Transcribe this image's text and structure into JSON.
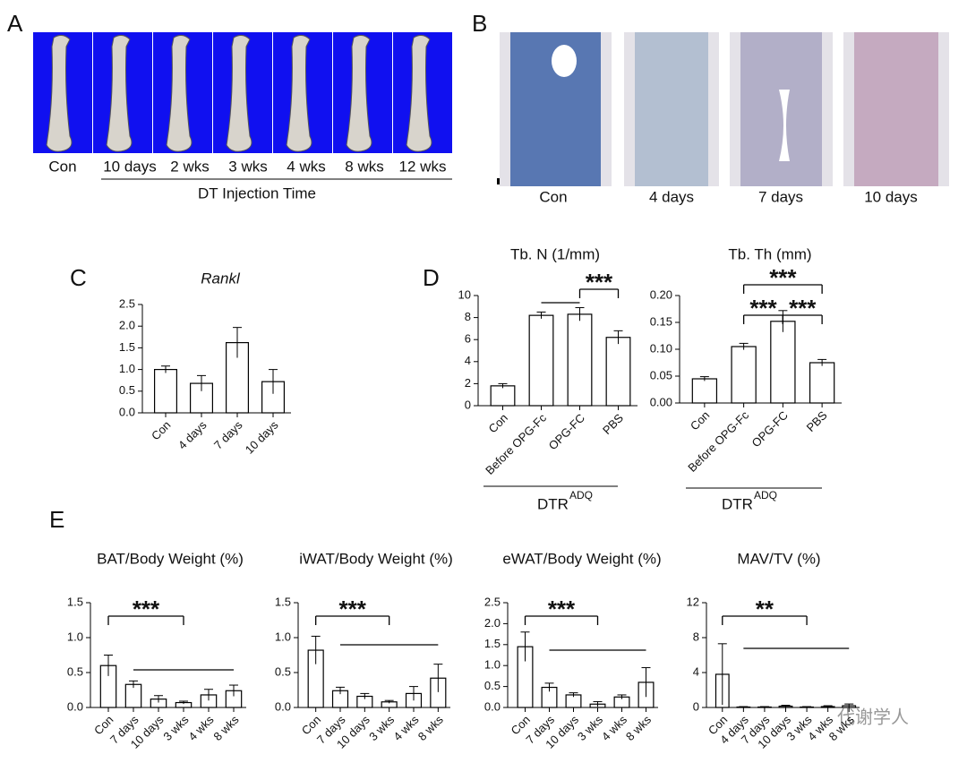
{
  "panel_letters": [
    "A",
    "B",
    "C",
    "D",
    "E"
  ],
  "panel_a": {
    "labels": [
      "Con",
      "10 days",
      "2 wks",
      "3 wks",
      "4 wks",
      "8 wks",
      "12 wks"
    ],
    "axis_label": "DT Injection Time"
  },
  "panel_b": {
    "labels": [
      "Con",
      "4 days",
      "7 days",
      "10 days"
    ]
  },
  "group_label": {
    "text": "DTR",
    "superscript": "ADQ"
  },
  "watermark": "代谢学人",
  "chart_data": [
    {
      "type": "bar",
      "title": "Rankl",
      "categories": [
        "Con",
        "4 days",
        "7 days",
        "10 days"
      ],
      "values": [
        1.0,
        0.68,
        1.62,
        0.72
      ],
      "errors": [
        0.08,
        0.18,
        0.35,
        0.28
      ],
      "color": "#ffffff",
      "edgecolor": "#000000",
      "ylim": [
        0,
        2.5
      ],
      "yticks": [
        {
          "value": 0,
          "label": "0.0"
        },
        0.5,
        {
          "value": 1,
          "label": "1.0"
        },
        1.5,
        {
          "value": 2,
          "label": "2.0"
        },
        2.5
      ],
      "brackets": []
    },
    {
      "type": "bar",
      "title": "Tb. N (1/mm)",
      "categories": [
        "Con",
        "Before OPG-Fc",
        "OPG-FC",
        "PBS"
      ],
      "values": [
        1.8,
        8.2,
        8.3,
        6.2
      ],
      "errors": [
        0.2,
        0.3,
        0.6,
        0.6
      ],
      "color": "#ffffff",
      "edgecolor": "#000000",
      "ylim": [
        0,
        10
      ],
      "yticks": [
        0,
        2,
        4,
        6,
        8,
        10
      ],
      "brackets": [
        {
          "label": "***",
          "from": "OPG-FC",
          "to": "PBS"
        },
        {
          "from": "Before OPG-Fc",
          "to": "OPG-FC"
        }
      ]
    },
    {
      "type": "bar",
      "title": "Tb. Th (mm)",
      "categories": [
        "Con",
        "Before OPG-Fc",
        "OPG-FC",
        "PBS"
      ],
      "values": [
        0.045,
        0.105,
        0.152,
        0.075
      ],
      "errors": [
        0.004,
        0.006,
        0.02,
        0.006
      ],
      "color": "#ffffff",
      "edgecolor": "#000000",
      "ylim": [
        0,
        0.2
      ],
      "yticks": [
        {
          "value": 0,
          "label": "0.00"
        },
        0.05,
        {
          "value": 0.1,
          "label": "0.10"
        },
        0.15,
        {
          "value": 0.2,
          "label": "0.20"
        }
      ],
      "brackets": [
        {
          "label": "***",
          "from": "Before OPG-Fc",
          "to": "OPG-FC"
        },
        {
          "label": "***",
          "from": "OPG-FC",
          "to": "PBS"
        },
        {
          "label": "***",
          "from": "Before OPG-Fc",
          "to": "PBS"
        }
      ]
    },
    {
      "type": "bar",
      "title": "BAT/Body Weight (%)",
      "categories": [
        "Con",
        "7 days",
        "10 days",
        "3 wks",
        "4 wks",
        "8 wks"
      ],
      "values": [
        0.6,
        0.33,
        0.12,
        0.07,
        0.18,
        0.24
      ],
      "errors": [
        0.15,
        0.05,
        0.05,
        0.02,
        0.08,
        0.08
      ],
      "color": "#ffffff",
      "edgecolor": "#000000",
      "ylim": [
        0,
        1.5
      ],
      "yticks": [
        {
          "value": 0,
          "label": "0.0"
        },
        0.5,
        {
          "value": 1,
          "label": "1.0"
        },
        1.5
      ],
      "brackets": [
        {
          "label": "***",
          "from": "Con",
          "to": "3 wks"
        },
        {
          "from": "7 days",
          "to": "8 wks"
        }
      ]
    },
    {
      "type": "bar",
      "title": "iWAT/Body Weight (%)",
      "categories": [
        "Con",
        "7 days",
        "10 days",
        "3 wks",
        "4 wks",
        "8 wks"
      ],
      "values": [
        0.82,
        0.24,
        0.16,
        0.08,
        0.2,
        0.42
      ],
      "errors": [
        0.2,
        0.05,
        0.04,
        0.02,
        0.1,
        0.2
      ],
      "color": "#ffffff",
      "edgecolor": "#000000",
      "ylim": [
        0,
        1.5
      ],
      "yticks": [
        {
          "value": 0,
          "label": "0.0"
        },
        0.5,
        {
          "value": 1,
          "label": "1.0"
        },
        1.5
      ],
      "brackets": [
        {
          "label": "***",
          "from": "Con",
          "to": "3 wks"
        },
        {
          "from": "7 days",
          "to": "8 wks"
        }
      ]
    },
    {
      "type": "bar",
      "title": "eWAT/Body Weight (%)",
      "categories": [
        "Con",
        "7 days",
        "10 days",
        "3 wks",
        "4 wks",
        "8 wks"
      ],
      "values": [
        1.45,
        0.48,
        0.3,
        0.08,
        0.25,
        0.6
      ],
      "errors": [
        0.35,
        0.1,
        0.05,
        0.06,
        0.05,
        0.35
      ],
      "color": "#ffffff",
      "edgecolor": "#000000",
      "ylim": [
        0,
        2.5
      ],
      "yticks": [
        {
          "value": 0,
          "label": "0.0"
        },
        0.5,
        {
          "value": 1,
          "label": "1.0"
        },
        1.5,
        {
          "value": 2,
          "label": "2.0"
        },
        2.5
      ],
      "brackets": [
        {
          "label": "***",
          "from": "Con",
          "to": "3 wks"
        },
        {
          "from": "7 days",
          "to": "8 wks"
        }
      ]
    },
    {
      "type": "bar",
      "title": "MAV/TV (%)",
      "categories": [
        "Con",
        "4 days",
        "7 days",
        "10 days",
        "3 wks",
        "4 wks",
        "8 wks"
      ],
      "values": [
        3.8,
        0.05,
        0.05,
        0.15,
        0.05,
        0.1,
        0.2
      ],
      "errors": [
        3.5,
        0.05,
        0.05,
        0.1,
        0.05,
        0.1,
        0.2
      ],
      "color": "#ffffff",
      "edgecolor": "#000000",
      "ylim": [
        0,
        12
      ],
      "yticks": [
        0,
        4,
        8,
        12
      ],
      "brackets": [
        {
          "label": "**",
          "from": "Con",
          "to": "3 wks"
        },
        {
          "from": "4 days",
          "to": "8 wks"
        }
      ]
    }
  ]
}
